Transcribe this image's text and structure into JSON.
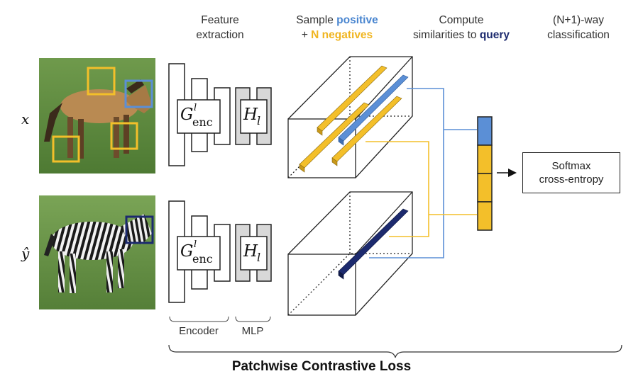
{
  "headers": {
    "feature": [
      "Feature",
      "extraction"
    ],
    "sample": {
      "line1_prefix": "Sample ",
      "line1_positive": "positive",
      "line2_prefix": "+ ",
      "line2_negatives": "N negatives"
    },
    "compute": {
      "line1": "Compute",
      "line2_prefix": "similarities to ",
      "line2_query": "query"
    },
    "classify": [
      "(N+1)-way",
      "classification"
    ]
  },
  "rows": {
    "x_label": "x",
    "y_label": "ŷ"
  },
  "blocks": {
    "encoder_symbol": "G",
    "encoder_sup": "l",
    "encoder_sub": "enc",
    "mlp_symbol": "H",
    "mlp_sub": "l"
  },
  "braces": {
    "encoder": "Encoder",
    "mlp": "MLP"
  },
  "softmax": [
    "Softmax",
    "cross-entropy"
  ],
  "footer": "Patchwise Contrastive Loss",
  "colors": {
    "positive": "#5b8fd6",
    "negative": "#f3bf2a",
    "query": "#1c2a6e",
    "mlp_fill": "#d8d8d8",
    "line": "#222222"
  }
}
